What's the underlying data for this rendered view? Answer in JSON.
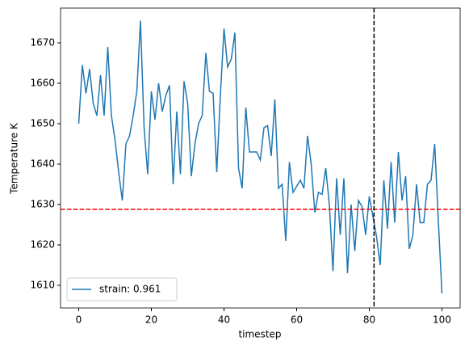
{
  "chart_data": {
    "type": "line",
    "xlabel": "timestep",
    "ylabel": "Temperature K",
    "x": [
      0,
      1,
      2,
      3,
      4,
      5,
      6,
      7,
      8,
      9,
      10,
      11,
      12,
      13,
      14,
      15,
      16,
      17,
      18,
      19,
      20,
      21,
      22,
      23,
      24,
      25,
      26,
      27,
      28,
      29,
      30,
      31,
      32,
      33,
      34,
      35,
      36,
      37,
      38,
      39,
      40,
      41,
      42,
      43,
      44,
      45,
      46,
      47,
      48,
      49,
      50,
      51,
      52,
      53,
      54,
      55,
      56,
      57,
      58,
      59,
      60,
      61,
      62,
      63,
      64,
      65,
      66,
      67,
      68,
      69,
      70,
      71,
      72,
      73,
      74,
      75,
      76,
      77,
      78,
      79,
      80,
      81,
      82,
      83,
      84,
      85,
      86,
      87,
      88,
      89,
      90,
      91,
      92,
      93,
      94,
      95,
      96,
      97,
      98,
      99,
      100
    ],
    "series": [
      {
        "name": "strain: 0.961",
        "color": "#1f77b4",
        "values": [
          1650,
          1664.5,
          1657.5,
          1663.5,
          1655,
          1652,
          1662,
          1652,
          1669,
          1652,
          1646,
          1638,
          1631,
          1645,
          1647,
          1652,
          1658,
          1675.5,
          1649,
          1637.5,
          1658,
          1651,
          1660,
          1653,
          1657,
          1659.5,
          1635,
          1653,
          1637.5,
          1660.5,
          1655,
          1637,
          1645,
          1650,
          1652,
          1667.5,
          1658,
          1657.5,
          1638,
          1657,
          1673.5,
          1664,
          1666,
          1672.5,
          1639,
          1634,
          1654,
          1643,
          1643,
          1643,
          1641,
          1649,
          1649.5,
          1642,
          1656,
          1634,
          1635,
          1621,
          1640.5,
          1633,
          1634.5,
          1636,
          1634,
          1647,
          1640,
          1628,
          1633,
          1632.5,
          1639,
          1630,
          1613.5,
          1636.5,
          1622.5,
          1636.5,
          1613,
          1630,
          1618.5,
          1631,
          1629.5,
          1622.5,
          1632,
          1627,
          1622,
          1615,
          1636,
          1624,
          1640.5,
          1625.5,
          1643,
          1631,
          1637,
          1619,
          1622.5,
          1635,
          1625.5,
          1625.5,
          1635,
          1636,
          1645,
          1626,
          1608
        ]
      }
    ],
    "hline": {
      "value": 1628.8,
      "color": "#ff0000"
    },
    "vline": {
      "value": 81.3,
      "color": "#000000"
    },
    "xlim": [
      -5,
      105
    ],
    "ylim": [
      1604.4,
      1678.6
    ],
    "xticks": [
      0,
      20,
      40,
      60,
      80,
      100
    ],
    "yticks": [
      1610,
      1620,
      1630,
      1640,
      1650,
      1660,
      1670
    ],
    "legend": "lower left"
  }
}
